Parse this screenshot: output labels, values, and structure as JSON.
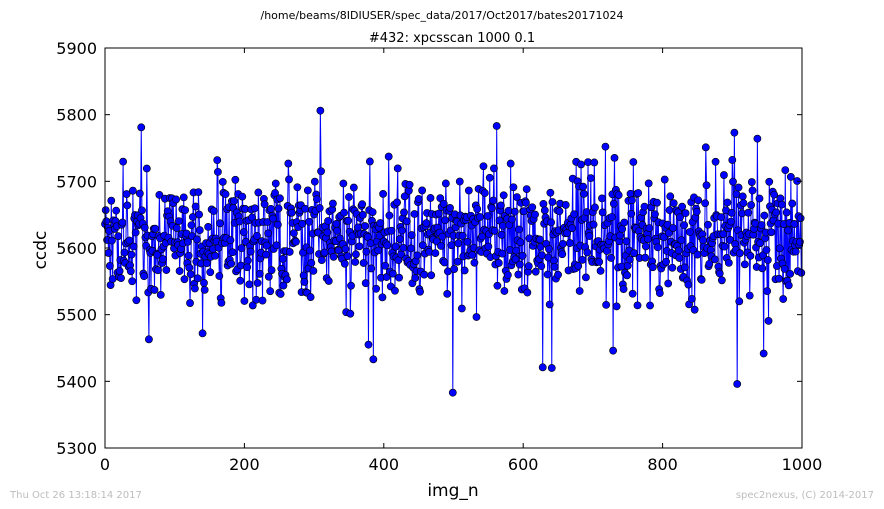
{
  "chart_data": {
    "type": "line",
    "marker": "circle",
    "color": "#0000ff",
    "marker_edge_color": "#000000",
    "subtitle": "/home/beams/8IDIUSER/spec_data/2017/Oct2017/bates20171024",
    "title": "#432: xpcsscan 1000 0.1",
    "xlabel": "img_n",
    "ylabel": "ccdc",
    "xlim": [
      0,
      1000
    ],
    "ylim": [
      5300,
      5900
    ],
    "xticks": [
      0,
      200,
      400,
      600,
      800,
      1000
    ],
    "yticks": [
      5300,
      5400,
      5500,
      5600,
      5700,
      5800,
      5900
    ],
    "grid": false,
    "n_points": 1000,
    "mean": 5615,
    "spread": 45,
    "y_range": [
      5383,
      5806
    ],
    "notable_points": [
      {
        "x": 52,
        "y": 5781
      },
      {
        "x": 63,
        "y": 5463
      },
      {
        "x": 140,
        "y": 5472
      },
      {
        "x": 309,
        "y": 5806
      },
      {
        "x": 378,
        "y": 5455
      },
      {
        "x": 385,
        "y": 5433
      },
      {
        "x": 499,
        "y": 5383
      },
      {
        "x": 562,
        "y": 5783
      },
      {
        "x": 628,
        "y": 5421
      },
      {
        "x": 641,
        "y": 5420
      },
      {
        "x": 718,
        "y": 5752
      },
      {
        "x": 729,
        "y": 5446
      },
      {
        "x": 862,
        "y": 5751
      },
      {
        "x": 903,
        "y": 5773
      },
      {
        "x": 907,
        "y": 5396
      },
      {
        "x": 936,
        "y": 5764
      }
    ]
  },
  "footer": {
    "left": "Thu Oct 26 13:18:14 2017",
    "right": "spec2nexus, (C) 2014-2017"
  }
}
